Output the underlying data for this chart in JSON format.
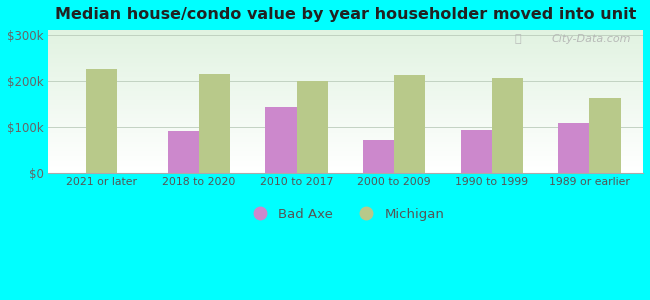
{
  "title": "Median house/condo value by year householder moved into unit",
  "categories": [
    "2021 or later",
    "2018 to 2020",
    "2010 to 2017",
    "2000 to 2009",
    "1990 to 1999",
    "1989 or earlier"
  ],
  "bad_axe_values": [
    null,
    90000,
    142000,
    72000,
    93000,
    107000
  ],
  "michigan_values": [
    225000,
    215000,
    200000,
    212000,
    205000,
    162000
  ],
  "bad_axe_color": "#cc88cc",
  "michigan_color": "#b8c98a",
  "background_color": "#00ffff",
  "yticks": [
    0,
    100000,
    200000,
    300000
  ],
  "ylim": [
    0,
    310000
  ],
  "watermark": "City-Data.com"
}
